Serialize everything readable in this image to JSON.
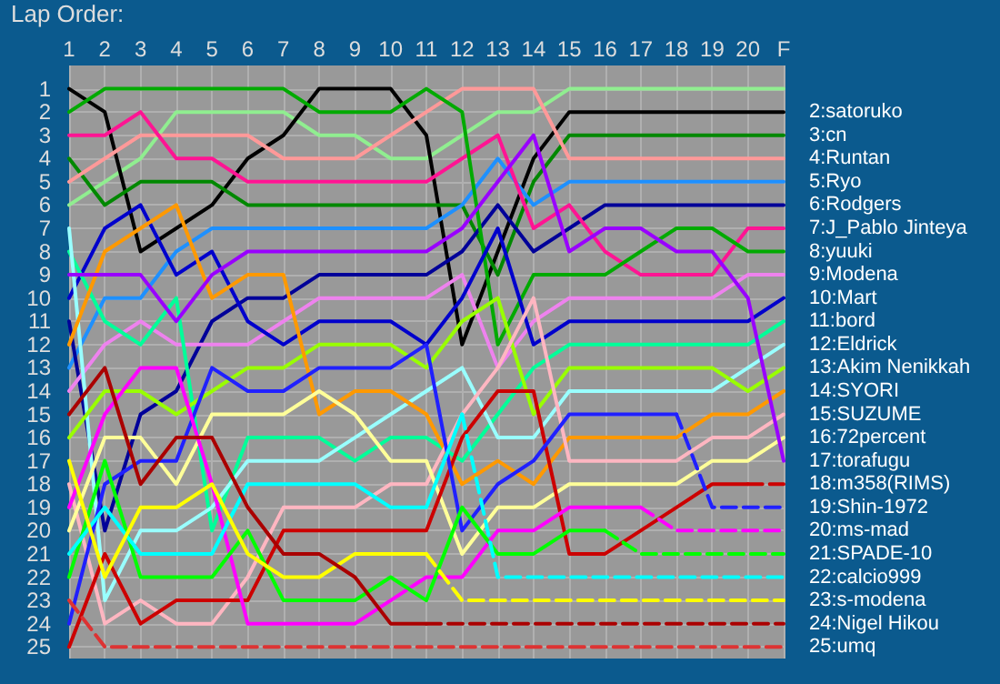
{
  "chart_data": {
    "type": "line",
    "title": "Lap Order:",
    "categories": [
      "1",
      "2",
      "3",
      "4",
      "5",
      "6",
      "7",
      "8",
      "9",
      "10",
      "11",
      "12",
      "13",
      "14",
      "15",
      "16",
      "17",
      "18",
      "19",
      "20",
      "F"
    ],
    "ylim": [
      25.5,
      0
    ],
    "yticks": [
      1,
      2,
      3,
      4,
      5,
      6,
      7,
      8,
      9,
      10,
      11,
      12,
      13,
      14,
      15,
      16,
      17,
      18,
      19,
      20,
      21,
      22,
      23,
      24,
      25
    ],
    "grid": true,
    "marker": "none",
    "line_style": "solid",
    "series": [
      {
        "color": "#90ee90",
        "values": [
          6,
          5,
          4,
          2,
          2,
          2,
          2,
          3,
          3,
          4,
          4,
          3,
          2,
          2,
          1,
          1,
          1,
          1,
          1,
          1,
          1
        ]
      },
      {
        "name": "2:satoruko",
        "color": "#000000",
        "values": [
          1,
          2,
          8,
          7,
          6,
          4,
          3,
          1,
          1,
          1,
          3,
          12,
          8,
          4,
          2,
          2,
          2,
          2,
          2,
          2,
          2
        ]
      },
      {
        "name": "3:cn",
        "color": "#008800",
        "values": [
          4,
          6,
          5,
          5,
          5,
          6,
          6,
          6,
          6,
          6,
          6,
          6,
          9,
          5,
          3,
          3,
          3,
          3,
          3,
          3,
          3
        ]
      },
      {
        "name": "4:Runtan",
        "color": "#ff9999",
        "values": [
          5,
          4,
          3,
          3,
          3,
          3,
          4,
          4,
          4,
          3,
          2,
          1,
          1,
          1,
          4,
          4,
          4,
          4,
          4,
          4,
          4
        ]
      },
      {
        "name": "5:Ryo",
        "color": "#1e90ff",
        "values": [
          13,
          10,
          10,
          8,
          7,
          7,
          7,
          7,
          7,
          7,
          7,
          6,
          4,
          6,
          5,
          5,
          5,
          5,
          5,
          5,
          5
        ]
      },
      {
        "name": "6:Rodgers",
        "color": "#000099",
        "values": [
          11,
          20,
          15,
          14,
          11,
          10,
          10,
          9,
          9,
          9,
          9,
          8,
          6,
          8,
          7,
          6,
          6,
          6,
          6,
          6,
          6
        ]
      },
      {
        "name": "7:J_Pablo Jinteya",
        "color": "#ff1493",
        "values": [
          3,
          3,
          2,
          4,
          4,
          5,
          5,
          5,
          5,
          5,
          5,
          4,
          3,
          7,
          6,
          8,
          9,
          9,
          9,
          7,
          7
        ]
      },
      {
        "name": "8:yuuki",
        "color": "#00aa00",
        "values": [
          2,
          1,
          1,
          1,
          1,
          1,
          1,
          2,
          2,
          2,
          1,
          2,
          12,
          9,
          9,
          9,
          8,
          7,
          7,
          8,
          8
        ]
      },
      {
        "name": "9:Modena",
        "color": "#ee82ee",
        "values": [
          14,
          12,
          11,
          12,
          12,
          12,
          11,
          10,
          10,
          10,
          10,
          9,
          13,
          11,
          10,
          10,
          10,
          10,
          10,
          9,
          9
        ]
      },
      {
        "name": "10:Mart",
        "color": "#0000cc",
        "values": [
          10,
          7,
          6,
          9,
          8,
          11,
          12,
          11,
          11,
          11,
          12,
          10,
          7,
          12,
          11,
          11,
          11,
          11,
          11,
          11,
          10
        ]
      },
      {
        "name": "11:bord",
        "color": "#00ff99",
        "values": [
          8,
          11,
          12,
          10,
          20,
          16,
          16,
          16,
          17,
          16,
          16,
          17,
          15,
          13,
          12,
          12,
          12,
          12,
          12,
          12,
          11
        ]
      },
      {
        "name": "12:Eldrick",
        "color": "#99ffff",
        "values": [
          7,
          23,
          20,
          20,
          19,
          17,
          17,
          17,
          16,
          15,
          14,
          13,
          16,
          16,
          14,
          14,
          14,
          14,
          14,
          13,
          12
        ]
      },
      {
        "name": "13:Akim Nenikkah",
        "color": "#99ff00",
        "values": [
          16,
          14,
          14,
          15,
          14,
          13,
          13,
          12,
          12,
          12,
          13,
          11,
          10,
          15,
          13,
          13,
          13,
          13,
          13,
          14,
          13
        ]
      },
      {
        "name": "14:SYORI",
        "color": "#ff9900",
        "values": [
          12,
          8,
          7,
          6,
          10,
          9,
          9,
          15,
          14,
          14,
          15,
          18,
          17,
          18,
          16,
          16,
          16,
          16,
          15,
          15,
          14
        ]
      },
      {
        "name": "15:SUZUME",
        "color": "#ffb6c1",
        "values": [
          18,
          24,
          23,
          24,
          24,
          22,
          19,
          19,
          19,
          18,
          18,
          15,
          13,
          10,
          17,
          17,
          17,
          17,
          16,
          16,
          15
        ]
      },
      {
        "name": "16:72percent",
        "color": "#ffff99",
        "values": [
          20,
          16,
          16,
          18,
          15,
          15,
          15,
          14,
          15,
          17,
          17,
          21,
          19,
          19,
          18,
          18,
          18,
          18,
          17,
          17,
          16
        ]
      },
      {
        "name": "17:torafugu",
        "color": "#9900ff",
        "values": [
          9,
          9,
          9,
          11,
          9,
          8,
          8,
          8,
          8,
          8,
          8,
          7,
          5,
          3,
          8,
          7,
          7,
          8,
          8,
          10,
          17
        ]
      },
      {
        "color": "#cc0000",
        "values": [
          25,
          21,
          24,
          23,
          23,
          23,
          20,
          20,
          20,
          20,
          20,
          16,
          14,
          14,
          21,
          21,
          20,
          19,
          18,
          18,
          null
        ]
      },
      {
        "name": "18:m358(RIMS)",
        "color": "#cc0000",
        "line_style": "dashed",
        "values": [
          null,
          null,
          null,
          null,
          null,
          null,
          null,
          null,
          null,
          null,
          null,
          null,
          null,
          null,
          null,
          null,
          null,
          null,
          null,
          18,
          18
        ]
      },
      {
        "color": "#2020ff",
        "values": [
          24,
          18,
          17,
          17,
          13,
          14,
          14,
          13,
          13,
          13,
          12,
          20,
          18,
          17,
          15,
          15,
          15,
          15,
          null,
          null,
          null
        ]
      },
      {
        "name": "19:Shin-1972",
        "color": "#2020ff",
        "line_style": "dashed",
        "values": [
          null,
          null,
          null,
          null,
          null,
          null,
          null,
          null,
          null,
          null,
          null,
          null,
          null,
          null,
          null,
          null,
          null,
          15,
          19,
          19,
          19
        ]
      },
      {
        "color": "#ff00ff",
        "values": [
          19,
          15,
          13,
          13,
          18,
          24,
          24,
          24,
          24,
          23,
          22,
          22,
          20,
          20,
          19,
          19,
          19,
          null,
          null,
          null,
          null
        ]
      },
      {
        "name": "20:ms-mad",
        "color": "#ff00ff",
        "line_style": "dashed",
        "values": [
          null,
          null,
          null,
          null,
          null,
          null,
          null,
          null,
          null,
          null,
          null,
          null,
          null,
          null,
          null,
          null,
          19,
          20,
          20,
          20,
          20
        ]
      },
      {
        "color": "#00ff00",
        "values": [
          22,
          17,
          22,
          22,
          22,
          20,
          23,
          23,
          23,
          22,
          23,
          19,
          21,
          21,
          20,
          20,
          null,
          null,
          null,
          null,
          null
        ]
      },
      {
        "name": "21:SPADE-10",
        "color": "#00ff00",
        "line_style": "dashed",
        "values": [
          null,
          null,
          null,
          null,
          null,
          null,
          null,
          null,
          null,
          null,
          null,
          null,
          null,
          null,
          null,
          20,
          21,
          21,
          21,
          21,
          21
        ]
      },
      {
        "color": "#00ffff",
        "values": [
          21,
          19,
          21,
          21,
          21,
          18,
          18,
          18,
          18,
          19,
          19,
          15,
          null,
          null,
          null,
          null,
          null,
          null,
          null,
          null,
          null
        ]
      },
      {
        "name": "22:calcio999",
        "color": "#00ffff",
        "line_style": "dashed",
        "values": [
          null,
          null,
          null,
          null,
          null,
          null,
          null,
          null,
          null,
          null,
          null,
          15,
          22,
          22,
          22,
          22,
          22,
          22,
          22,
          22,
          22
        ]
      },
      {
        "color": "#ffff00",
        "values": [
          17,
          22,
          19,
          19,
          18,
          21,
          22,
          22,
          21,
          21,
          21,
          null,
          null,
          null,
          null,
          null,
          null,
          null,
          null,
          null,
          null
        ]
      },
      {
        "name": "23:s-modena",
        "color": "#ffff00",
        "line_style": "dashed",
        "values": [
          null,
          null,
          null,
          null,
          null,
          null,
          null,
          null,
          null,
          null,
          21,
          23,
          23,
          23,
          23,
          23,
          23,
          23,
          23,
          23,
          23
        ]
      },
      {
        "color": "#aa0000",
        "values": [
          15,
          13,
          18,
          16,
          16,
          19,
          21,
          21,
          22,
          24,
          24,
          null,
          null,
          null,
          null,
          null,
          null,
          null,
          null,
          null,
          null
        ]
      },
      {
        "name": "24:Nigel Hikou",
        "color": "#aa0000",
        "line_style": "dashed",
        "values": [
          null,
          null,
          null,
          null,
          null,
          null,
          null,
          null,
          null,
          null,
          24,
          24,
          24,
          24,
          24,
          24,
          24,
          24,
          24,
          24,
          24
        ]
      },
      {
        "name": "25:umq",
        "color": "#dd3333",
        "line_style": "dashed",
        "values": [
          23,
          25,
          25,
          25,
          25,
          25,
          25,
          25,
          25,
          25,
          25,
          25,
          25,
          25,
          25,
          25,
          25,
          25,
          25,
          25,
          25
        ]
      }
    ]
  }
}
